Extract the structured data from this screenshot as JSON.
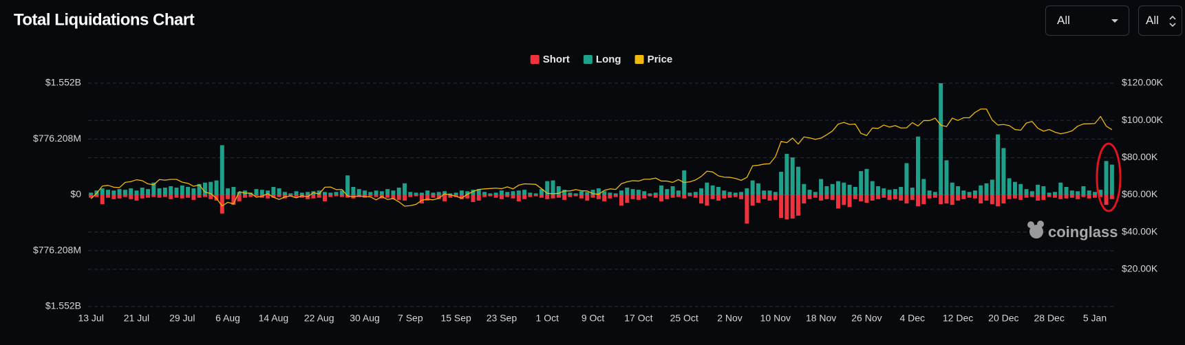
{
  "controls": [
    "All",
    "All"
  ],
  "chart_data": {
    "type": "bar",
    "title": "Total Liquidations Chart",
    "watermark": "coinglass",
    "legend": "top",
    "grid": true,
    "categories": [
      "13 Jul",
      null,
      null,
      null,
      null,
      null,
      null,
      null,
      "21 Jul",
      null,
      null,
      null,
      null,
      null,
      null,
      null,
      "29 Jul",
      null,
      null,
      null,
      null,
      null,
      null,
      null,
      "6 Aug",
      null,
      null,
      null,
      null,
      null,
      null,
      null,
      "14 Aug",
      null,
      null,
      null,
      null,
      null,
      null,
      null,
      "22 Aug",
      null,
      null,
      null,
      null,
      null,
      null,
      null,
      "30 Aug",
      null,
      null,
      null,
      null,
      null,
      null,
      null,
      "7 Sep",
      null,
      null,
      null,
      null,
      null,
      null,
      null,
      "15 Sep",
      null,
      null,
      null,
      null,
      null,
      null,
      null,
      "23 Sep",
      null,
      null,
      null,
      null,
      null,
      null,
      null,
      "1 Oct",
      null,
      null,
      null,
      null,
      null,
      null,
      null,
      "9 Oct",
      null,
      null,
      null,
      null,
      null,
      null,
      null,
      "17 Oct",
      null,
      null,
      null,
      null,
      null,
      null,
      null,
      "25 Oct",
      null,
      null,
      null,
      null,
      null,
      null,
      null,
      "2 Nov",
      null,
      null,
      null,
      null,
      null,
      null,
      null,
      "10 Nov",
      null,
      null,
      null,
      null,
      null,
      null,
      null,
      "18 Nov",
      null,
      null,
      null,
      null,
      null,
      null,
      null,
      "26 Nov",
      null,
      null,
      null,
      null,
      null,
      null,
      null,
      "4 Dec",
      null,
      null,
      null,
      null,
      null,
      null,
      null,
      "12 Dec",
      null,
      null,
      null,
      null,
      null,
      null,
      null,
      "20 Dec",
      null,
      null,
      null,
      null,
      null,
      null,
      null,
      "28 Dec",
      null,
      null,
      null,
      null,
      null,
      null,
      null,
      "5 Jan",
      null,
      null,
      null
    ],
    "ylim": [
      -1552416000,
      1552416000
    ],
    "yticks": [
      {
        "value": 1552416000,
        "label": "$1.552B"
      },
      {
        "value": 776208000,
        "label": "$776.208M"
      },
      {
        "value": 0,
        "label": "$0"
      },
      {
        "value": -776208000,
        "label": "$776.208M"
      },
      {
        "value": -1552416000,
        "label": "$1.552B"
      }
    ],
    "y2lim": [
      0,
      120000
    ],
    "y2ticks": [
      {
        "value": 20000,
        "label": "$20.00K"
      },
      {
        "value": 40000,
        "label": "$40.00K"
      },
      {
        "value": 60000,
        "label": "$60.00K"
      },
      {
        "value": 80000,
        "label": "$80.00K"
      },
      {
        "value": 100000,
        "label": "$100.00K"
      },
      {
        "value": 120000,
        "label": "$120.00K"
      }
    ],
    "series": [
      {
        "name": "Short",
        "type": "bar",
        "color": "#f0323c",
        "values": [
          -40000000,
          -30000000,
          -130000000,
          -40000000,
          -60000000,
          -50000000,
          -30000000,
          -60000000,
          -80000000,
          -50000000,
          -40000000,
          -30000000,
          -40000000,
          -30000000,
          -60000000,
          -40000000,
          -50000000,
          -40000000,
          -70000000,
          -40000000,
          -30000000,
          -60000000,
          -80000000,
          -260000000,
          -60000000,
          -140000000,
          -90000000,
          -40000000,
          -30000000,
          -20000000,
          -40000000,
          -50000000,
          -40000000,
          -30000000,
          -50000000,
          -20000000,
          -30000000,
          -40000000,
          -60000000,
          -50000000,
          -40000000,
          -90000000,
          -30000000,
          -20000000,
          -30000000,
          -40000000,
          -50000000,
          -30000000,
          -40000000,
          -20000000,
          -30000000,
          -50000000,
          -40000000,
          -60000000,
          -70000000,
          -80000000,
          -30000000,
          -20000000,
          -120000000,
          -80000000,
          -40000000,
          -60000000,
          -90000000,
          -40000000,
          -30000000,
          -60000000,
          -50000000,
          -100000000,
          -80000000,
          -30000000,
          -20000000,
          -40000000,
          -60000000,
          -30000000,
          -50000000,
          -90000000,
          -60000000,
          -30000000,
          -20000000,
          -40000000,
          -60000000,
          -50000000,
          -40000000,
          -70000000,
          -30000000,
          -20000000,
          -50000000,
          -80000000,
          -40000000,
          -60000000,
          -90000000,
          -50000000,
          -30000000,
          -150000000,
          -110000000,
          -60000000,
          -70000000,
          -50000000,
          -20000000,
          -40000000,
          -90000000,
          -60000000,
          -40000000,
          -30000000,
          -50000000,
          -20000000,
          -40000000,
          -120000000,
          -150000000,
          -60000000,
          -80000000,
          -50000000,
          -40000000,
          -30000000,
          -60000000,
          -400000000,
          -150000000,
          -110000000,
          -60000000,
          -80000000,
          -70000000,
          -320000000,
          -340000000,
          -330000000,
          -290000000,
          -120000000,
          -60000000,
          -40000000,
          -80000000,
          -60000000,
          -70000000,
          -190000000,
          -140000000,
          -170000000,
          -60000000,
          -90000000,
          -110000000,
          -80000000,
          -60000000,
          -40000000,
          -70000000,
          -60000000,
          -80000000,
          -120000000,
          -70000000,
          -160000000,
          -130000000,
          -50000000,
          -40000000,
          -130000000,
          -120000000,
          -140000000,
          -80000000,
          -60000000,
          -40000000,
          -50000000,
          -120000000,
          -80000000,
          -130000000,
          -160000000,
          -120000000,
          -60000000,
          -50000000,
          -70000000,
          -40000000,
          -30000000,
          -80000000,
          -70000000,
          -30000000,
          -40000000,
          -60000000,
          -50000000,
          -40000000,
          -60000000,
          -30000000,
          -50000000,
          -40000000,
          -30000000,
          -140000000,
          -60000000
        ]
      },
      {
        "name": "Long",
        "type": "bar",
        "color": "#1fa08a",
        "values": [
          30000000,
          60000000,
          90000000,
          70000000,
          60000000,
          80000000,
          70000000,
          90000000,
          60000000,
          100000000,
          80000000,
          170000000,
          90000000,
          100000000,
          120000000,
          100000000,
          130000000,
          110000000,
          90000000,
          150000000,
          170000000,
          180000000,
          200000000,
          690000000,
          90000000,
          110000000,
          40000000,
          60000000,
          30000000,
          80000000,
          70000000,
          60000000,
          110000000,
          90000000,
          40000000,
          20000000,
          50000000,
          30000000,
          40000000,
          50000000,
          60000000,
          40000000,
          30000000,
          40000000,
          60000000,
          270000000,
          110000000,
          80000000,
          60000000,
          40000000,
          60000000,
          50000000,
          80000000,
          60000000,
          100000000,
          160000000,
          40000000,
          30000000,
          30000000,
          60000000,
          30000000,
          40000000,
          50000000,
          20000000,
          30000000,
          60000000,
          50000000,
          70000000,
          80000000,
          40000000,
          20000000,
          30000000,
          60000000,
          40000000,
          50000000,
          60000000,
          70000000,
          30000000,
          20000000,
          80000000,
          190000000,
          200000000,
          120000000,
          70000000,
          30000000,
          20000000,
          50000000,
          40000000,
          70000000,
          90000000,
          50000000,
          30000000,
          20000000,
          60000000,
          100000000,
          80000000,
          70000000,
          50000000,
          20000000,
          30000000,
          130000000,
          80000000,
          120000000,
          60000000,
          340000000,
          30000000,
          40000000,
          90000000,
          170000000,
          130000000,
          110000000,
          60000000,
          40000000,
          30000000,
          40000000,
          90000000,
          200000000,
          160000000,
          60000000,
          60000000,
          40000000,
          320000000,
          570000000,
          520000000,
          390000000,
          150000000,
          70000000,
          40000000,
          220000000,
          120000000,
          150000000,
          190000000,
          170000000,
          140000000,
          110000000,
          330000000,
          360000000,
          190000000,
          120000000,
          90000000,
          70000000,
          80000000,
          110000000,
          440000000,
          100000000,
          810000000,
          220000000,
          60000000,
          40000000,
          1552000000,
          480000000,
          170000000,
          120000000,
          60000000,
          40000000,
          60000000,
          130000000,
          160000000,
          210000000,
          840000000,
          650000000,
          230000000,
          180000000,
          150000000,
          80000000,
          50000000,
          140000000,
          120000000,
          30000000,
          40000000,
          170000000,
          110000000,
          60000000,
          50000000,
          120000000,
          60000000,
          40000000,
          70000000,
          470000000,
          420000000
        ]
      },
      {
        "name": "Price",
        "type": "line",
        "axis": "y2",
        "color": "#f0b90b",
        "values": [
          57900,
          60800,
          64700,
          65100,
          64100,
          63900,
          66700,
          67100,
          68100,
          67600,
          65900,
          65400,
          68200,
          67900,
          68300,
          68300,
          66800,
          66200,
          64600,
          65300,
          61500,
          60700,
          58100,
          54000,
          56000,
          55100,
          61700,
          60900,
          60900,
          58700,
          59300,
          60600,
          58700,
          57500,
          58900,
          59400,
          58400,
          59500,
          59000,
          61200,
          60400,
          64100,
          64200,
          62800,
          62900,
          59400,
          59000,
          59400,
          59100,
          58900,
          57300,
          59100,
          57500,
          58000,
          56200,
          53900,
          54200,
          54900,
          57100,
          57700,
          57300,
          58200,
          60500,
          60000,
          59200,
          58200,
          60300,
          61800,
          62900,
          63200,
          63400,
          63600,
          63300,
          64300,
          63200,
          65200,
          65900,
          65800,
          65600,
          63300,
          60800,
          60600,
          60800,
          62100,
          62100,
          62800,
          62200,
          62100,
          60600,
          60300,
          62400,
          63200,
          62900,
          66000,
          67000,
          67600,
          67400,
          68400,
          68400,
          69000,
          67400,
          67400,
          66700,
          68200,
          66600,
          67000,
          68000,
          69900,
          72700,
          72300,
          70200,
          69500,
          69400,
          68800,
          67800,
          69400,
          75600,
          75900,
          76500,
          76700,
          80500,
          88700,
          88000,
          90500,
          87300,
          91100,
          90600,
          89800,
          90500,
          92300,
          94300,
          98000,
          98900,
          97800,
          98000,
          93000,
          91900,
          95900,
          95700,
          97500,
          96400,
          97200,
          95900,
          96000,
          98800,
          97000,
          99900,
          99900,
          101200,
          97400,
          96700,
          101200,
          100000,
          101400,
          101400,
          104300,
          106100,
          106100,
          100200,
          97500,
          97800,
          97200,
          95100,
          94700,
          98600,
          99400,
          95800,
          94200,
          95100,
          93700,
          92800,
          93400,
          94400,
          96900,
          98100,
          98200,
          98300,
          102100,
          96900,
          95000
        ]
      }
    ]
  }
}
